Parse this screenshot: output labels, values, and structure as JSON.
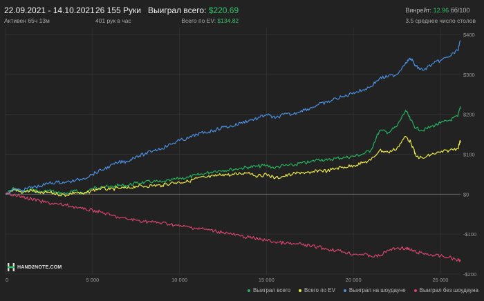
{
  "header": {
    "date_range": "22.09.2021 - 14.10.2021",
    "active_time": "Активен 65ч 13м",
    "hands": "26 155 Руки",
    "hands_per_hour": "401 рук в час",
    "won_total_label": "Выиграл всего:",
    "won_total_value": "$220.69",
    "ev_total_label": "Всего по EV:",
    "ev_total_value": "$134.82",
    "winrate_label": "Винрейт:",
    "winrate_value": "12.96",
    "winrate_unit": "бб/100",
    "avg_tables": "3.5 среднее число столов"
  },
  "logo": {
    "text": "HAND2NOTE.COM"
  },
  "colors": {
    "background": "#222222",
    "grid": "#303030",
    "zero_line": "#6a6a6a",
    "won_total": "#22b35e",
    "ev_total": "#ece94a",
    "showdown": "#4a8fe0",
    "no_showdown": "#d6456d",
    "accent_green": "#34c46a"
  },
  "chart_data": {
    "type": "line",
    "xlim": [
      0,
      26155
    ],
    "ylim": [
      -200,
      400
    ],
    "x_ticks": [
      {
        "value": 0,
        "label": "0"
      },
      {
        "value": 5000,
        "label": "5 000"
      },
      {
        "value": 10000,
        "label": "10 000"
      },
      {
        "value": 15000,
        "label": "15 000"
      },
      {
        "value": 20000,
        "label": "20 000"
      },
      {
        "value": 25000,
        "label": "25 000"
      }
    ],
    "y_ticks": [
      {
        "value": 400,
        "label": "$400"
      },
      {
        "value": 300,
        "label": "$300"
      },
      {
        "value": 200,
        "label": "$200"
      },
      {
        "value": 100,
        "label": "$100"
      },
      {
        "value": 0,
        "label": "$0"
      },
      {
        "value": -100,
        "label": "-$100"
      },
      {
        "value": -200,
        "label": "-$200"
      }
    ],
    "x": [
      0,
      500,
      1000,
      1500,
      2000,
      2500,
      3000,
      3500,
      4000,
      4500,
      5000,
      5500,
      6000,
      6500,
      7000,
      7500,
      8000,
      8500,
      9000,
      9500,
      10000,
      10500,
      11000,
      11500,
      12000,
      12500,
      13000,
      13500,
      14000,
      14500,
      15000,
      15500,
      16000,
      16500,
      17000,
      17500,
      18000,
      18500,
      19000,
      19500,
      20000,
      20500,
      21000,
      21500,
      22000,
      22500,
      23000,
      23300,
      23600,
      24000,
      24500,
      25000,
      25500,
      26000,
      26155
    ],
    "series": [
      {
        "name": "Выиграл всего",
        "color_key": "won_total",
        "values": [
          0,
          15,
          5,
          12,
          5,
          10,
          3,
          2,
          8,
          2,
          14,
          20,
          18,
          22,
          22,
          28,
          30,
          32,
          30,
          35,
          40,
          42,
          48,
          52,
          58,
          60,
          62,
          65,
          68,
          70,
          72,
          66,
          72,
          72,
          78,
          80,
          88,
          85,
          90,
          92,
          95,
          100,
          110,
          160,
          155,
          170,
          210,
          185,
          165,
          160,
          170,
          178,
          185,
          195,
          220
        ]
      },
      {
        "name": "Всего по EV",
        "color_key": "ev_total",
        "values": [
          0,
          12,
          4,
          10,
          2,
          5,
          0,
          -2,
          5,
          0,
          10,
          15,
          12,
          15,
          15,
          20,
          20,
          22,
          22,
          28,
          30,
          32,
          40,
          42,
          45,
          50,
          48,
          52,
          55,
          45,
          50,
          40,
          45,
          50,
          55,
          52,
          60,
          58,
          65,
          68,
          72,
          78,
          85,
          110,
          105,
          115,
          145,
          130,
          95,
          90,
          100,
          105,
          110,
          115,
          135
        ]
      },
      {
        "name": "Выиграл на шоудауне",
        "color_key": "showdown",
        "values": [
          0,
          12,
          10,
          18,
          20,
          28,
          30,
          30,
          34,
          40,
          50,
          60,
          70,
          80,
          82,
          95,
          100,
          110,
          115,
          125,
          135,
          140,
          150,
          155,
          160,
          168,
          170,
          178,
          185,
          190,
          200,
          190,
          200,
          200,
          210,
          215,
          225,
          230,
          240,
          245,
          255,
          260,
          270,
          290,
          295,
          300,
          330,
          340,
          320,
          310,
          325,
          335,
          345,
          360,
          385
        ]
      },
      {
        "name": "Выиграл без шоудауна",
        "color_key": "no_showdown",
        "values": [
          0,
          0,
          -8,
          -12,
          -18,
          -22,
          -25,
          -28,
          -32,
          -38,
          -40,
          -45,
          -52,
          -58,
          -62,
          -65,
          -68,
          -70,
          -72,
          -75,
          -80,
          -82,
          -85,
          -88,
          -92,
          -95,
          -100,
          -105,
          -108,
          -112,
          -115,
          -120,
          -122,
          -125,
          -125,
          -130,
          -132,
          -138,
          -140,
          -145,
          -150,
          -150,
          -155,
          -155,
          -140,
          -135,
          -135,
          -140,
          -145,
          -148,
          -152,
          -155,
          -158,
          -165,
          -165
        ]
      }
    ]
  }
}
